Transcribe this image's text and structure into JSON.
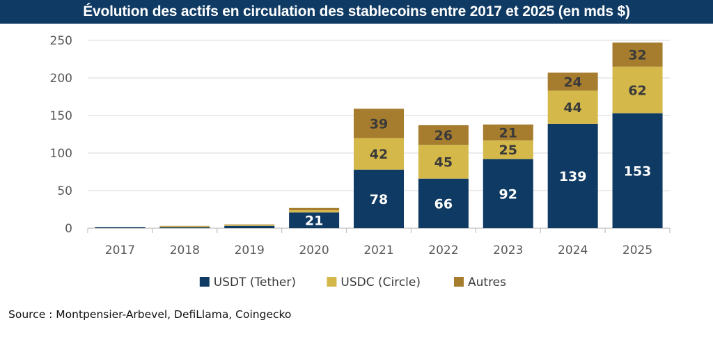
{
  "title": "Évolution des actifs en circulation des stablecoins entre 2017 et 2025 (en mds $)",
  "source": "Source : Montpensier-Arbevel, DefiLlama, Coingecko",
  "chart_data": {
    "type": "bar",
    "stacked": true,
    "title": "Évolution des actifs en circulation des stablecoins entre 2017 et 2025 (en mds $)",
    "xlabel": "",
    "ylabel": "",
    "ylim": [
      0,
      250
    ],
    "yticks": [
      0,
      50,
      100,
      150,
      200,
      250
    ],
    "grid": true,
    "legend_position": "bottom",
    "categories": [
      "2017",
      "2018",
      "2019",
      "2020",
      "2021",
      "2022",
      "2023",
      "2024",
      "2025"
    ],
    "series": [
      {
        "name": "USDT (Tether)",
        "color": "#0f3a63",
        "label_color": "#ffffff",
        "values": [
          1.5,
          1.5,
          3,
          21,
          78,
          66,
          92,
          139,
          153
        ],
        "labels": [
          "",
          "",
          "",
          "21",
          "78",
          "66",
          "92",
          "139",
          "153"
        ]
      },
      {
        "name": "USDC (Circle)",
        "color": "#d4b84a",
        "label_color": "#3a3a3a",
        "values": [
          0,
          1,
          1.5,
          3,
          42,
          45,
          25,
          44,
          62
        ],
        "labels": [
          "",
          "",
          "",
          "",
          "42",
          "45",
          "25",
          "44",
          "62"
        ]
      },
      {
        "name": "Autres",
        "color": "#a67c2e",
        "label_color": "#3a3a3a",
        "values": [
          0,
          0.5,
          0.5,
          3,
          39,
          26,
          21,
          24,
          32
        ],
        "labels": [
          "",
          "",
          "",
          "",
          "39",
          "26",
          "21",
          "24",
          "32"
        ]
      }
    ]
  }
}
